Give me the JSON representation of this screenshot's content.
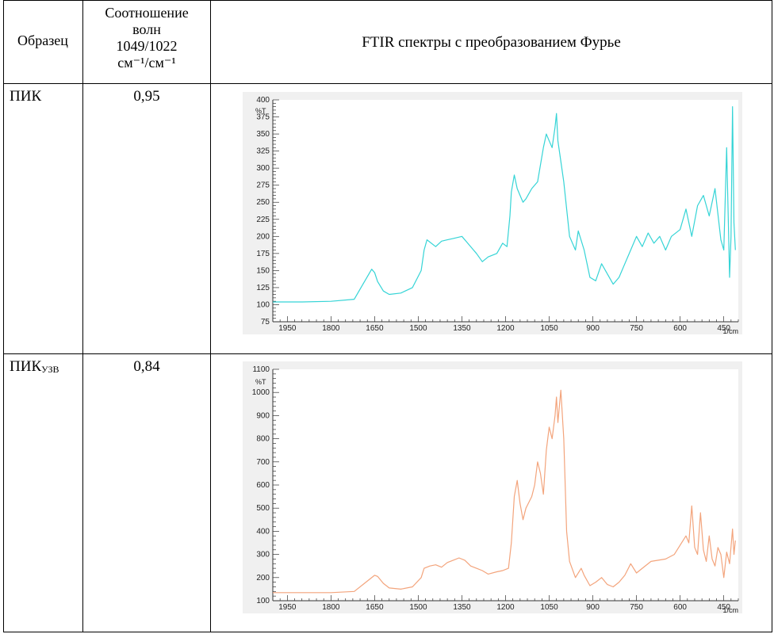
{
  "header": {
    "col1": "Образец",
    "col2_lines": [
      "Соотношение",
      "волн",
      "1049/1022",
      "см⁻¹/см⁻¹"
    ],
    "col3": "FTIR спектры с преобразованием Фурье"
  },
  "rows": [
    {
      "sample": "ПИК",
      "sample_sub": "",
      "ratio": "0,95"
    },
    {
      "sample": "ПИК",
      "sample_sub": "УЗВ",
      "ratio": "0,84"
    }
  ],
  "chart_data": [
    {
      "type": "line",
      "color": "#35d4d6",
      "yunit": "%T",
      "xunit": "1/cm",
      "xlim": [
        2000,
        400
      ],
      "ylim": [
        75,
        400
      ],
      "xticks": [
        "1950",
        "1800",
        "1650",
        "1500",
        "1350",
        "1200",
        "1050",
        "900",
        "750",
        "600",
        "450"
      ],
      "yticks": [
        "75",
        "100",
        "125",
        "150",
        "175",
        "200",
        "225",
        "250",
        "275",
        "300",
        "325",
        "350",
        "375",
        "400"
      ],
      "series": [
        {
          "x": [
            2000,
            1900,
            1800,
            1720,
            1690,
            1660,
            1650,
            1640,
            1620,
            1600,
            1560,
            1520,
            1490,
            1480,
            1470,
            1440,
            1420,
            1400,
            1380,
            1350,
            1330,
            1310,
            1300,
            1280,
            1260,
            1230,
            1210,
            1195,
            1185,
            1180,
            1170,
            1160,
            1150,
            1140,
            1130,
            1110,
            1090,
            1070,
            1060,
            1050,
            1040,
            1030,
            1025,
            1020,
            1010,
            1000,
            980,
            960,
            950,
            930,
            910,
            890,
            870,
            850,
            830,
            810,
            790,
            770,
            750,
            730,
            710,
            690,
            670,
            650,
            630,
            600,
            580,
            560,
            540,
            520,
            500,
            480,
            460,
            450,
            440,
            430,
            425,
            420,
            415,
            410
          ],
          "y": [
            104,
            104,
            105,
            108,
            130,
            152,
            147,
            134,
            120,
            115,
            117,
            125,
            150,
            180,
            195,
            185,
            193,
            195,
            197,
            200,
            190,
            180,
            175,
            163,
            170,
            175,
            190,
            185,
            230,
            265,
            290,
            270,
            260,
            250,
            255,
            270,
            280,
            330,
            350,
            340,
            330,
            360,
            380,
            340,
            310,
            280,
            200,
            180,
            208,
            180,
            140,
            135,
            160,
            145,
            130,
            140,
            160,
            180,
            200,
            185,
            205,
            190,
            200,
            180,
            200,
            210,
            240,
            200,
            245,
            260,
            230,
            270,
            195,
            180,
            330,
            140,
            200,
            390,
            220,
            180
          ]
        }
      ]
    },
    {
      "type": "line",
      "color": "#f3a47c",
      "yunit": "%T",
      "xunit": "1/cm",
      "xlim": [
        2000,
        400
      ],
      "ylim": [
        100,
        1100
      ],
      "xticks": [
        "1950",
        "1800",
        "1650",
        "1500",
        "1350",
        "1200",
        "1050",
        "900",
        "750",
        "600",
        "450"
      ],
      "yticks": [
        "100",
        "200",
        "300",
        "400",
        "500",
        "600",
        "700",
        "800",
        "900",
        "1000",
        "1100"
      ],
      "series": [
        {
          "x": [
            2000,
            1900,
            1800,
            1720,
            1680,
            1650,
            1640,
            1620,
            1600,
            1560,
            1520,
            1490,
            1480,
            1460,
            1440,
            1420,
            1400,
            1380,
            1360,
            1340,
            1320,
            1300,
            1280,
            1260,
            1230,
            1210,
            1190,
            1180,
            1170,
            1160,
            1150,
            1140,
            1130,
            1110,
            1100,
            1090,
            1080,
            1070,
            1060,
            1050,
            1040,
            1030,
            1025,
            1020,
            1010,
            1000,
            990,
            980,
            960,
            940,
            930,
            910,
            890,
            870,
            850,
            830,
            810,
            790,
            770,
            750,
            730,
            700,
            650,
            620,
            600,
            580,
            570,
            560,
            550,
            540,
            530,
            520,
            510,
            500,
            490,
            480,
            470,
            460,
            450,
            440,
            430,
            420,
            415,
            410
          ],
          "y": [
            135,
            135,
            135,
            140,
            180,
            210,
            205,
            175,
            155,
            150,
            160,
            200,
            240,
            250,
            255,
            245,
            265,
            275,
            285,
            275,
            250,
            240,
            230,
            215,
            225,
            230,
            240,
            350,
            550,
            620,
            520,
            450,
            500,
            550,
            600,
            700,
            650,
            560,
            750,
            850,
            800,
            900,
            980,
            870,
            1010,
            800,
            400,
            270,
            200,
            240,
            210,
            165,
            180,
            200,
            170,
            160,
            180,
            210,
            260,
            220,
            240,
            270,
            280,
            300,
            340,
            380,
            350,
            510,
            330,
            300,
            480,
            320,
            270,
            380,
            280,
            250,
            330,
            300,
            200,
            310,
            260,
            410,
            300,
            360
          ]
        }
      ]
    }
  ]
}
